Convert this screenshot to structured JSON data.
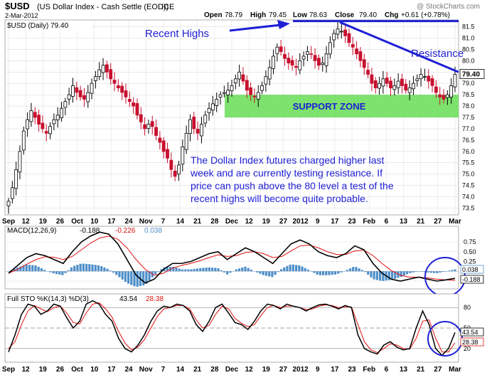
{
  "header": {
    "symbol": "$USD",
    "name": "(US Dollar Index - Cash Settle (EOD))",
    "exchange": "ICE",
    "date": "2-Mar-2012",
    "watermark": "@ StockCharts.com",
    "open_label": "Open",
    "open": "78.79",
    "high_label": "High",
    "high": "79.45",
    "low_label": "Low",
    "low": "78.63",
    "close_label": "Close",
    "close": "79.40",
    "chg_label": "Chg",
    "chg": "+0.61 (+0.78%)"
  },
  "colors": {
    "up": "#000000",
    "down": "#c8102e",
    "annotation": "#1f1fd6",
    "support": "#66dd55",
    "macd_line": "#000000",
    "signal_line": "#e01010",
    "histogram": "#4f8fc9",
    "pk_line": "#000000",
    "pd_line": "#e01010",
    "grid": "#dddddd"
  },
  "chart_data": [
    {
      "type": "candlestick",
      "legend": "$USD (Daily) 79.40",
      "last_value_label": "79.40",
      "ylim": [
        73.2,
        81.8
      ],
      "y_ticks": [
        73.5,
        74.0,
        74.5,
        75.0,
        75.5,
        76.0,
        76.5,
        77.0,
        77.5,
        78.0,
        78.5,
        79.0,
        79.5,
        80.0,
        80.5,
        81.0,
        81.5
      ],
      "x_tick_labels": [
        "Sep",
        "12",
        "19",
        "26",
        "Oct",
        "10",
        "17",
        "24",
        "Nov",
        "7",
        "14",
        "21",
        "28",
        "Dec",
        "12",
        "19",
        "27",
        "2012",
        "9",
        "17",
        "23",
        "Feb",
        "6",
        "13",
        "21",
        "27",
        "Mar"
      ],
      "close_path": [
        73.8,
        74.4,
        75.2,
        76.0,
        76.9,
        77.4,
        77.8,
        77.5,
        77.2,
        77.0,
        76.8,
        77.1,
        77.4,
        77.6,
        77.9,
        78.2,
        78.5,
        78.9,
        78.6,
        78.4,
        78.3,
        78.6,
        79.0,
        79.3,
        79.6,
        79.8,
        79.5,
        79.2,
        79.0,
        78.8,
        78.6,
        78.4,
        78.2,
        78.0,
        77.6,
        77.3,
        77.0,
        77.2,
        77.1,
        76.7,
        76.4,
        76.0,
        75.7,
        75.2,
        74.9,
        75.4,
        76.2,
        76.8,
        77.4,
        77.0,
        76.8,
        77.2,
        77.6,
        77.9,
        78.1,
        78.3,
        78.5,
        78.6,
        78.7,
        78.9,
        79.2,
        79.5,
        79.1,
        78.7,
        78.5,
        78.4,
        78.6,
        78.9,
        79.3,
        79.7,
        80.2,
        80.6,
        80.4,
        80.1,
        79.9,
        79.8,
        79.7,
        80.0,
        80.2,
        80.4,
        80.3,
        80.0,
        79.8,
        79.9,
        80.3,
        80.8,
        81.2,
        81.4,
        81.3,
        81.1,
        80.8,
        80.6,
        80.3,
        80.0,
        79.7,
        79.4,
        79.0,
        78.8,
        79.0,
        79.2,
        79.0,
        78.8,
        78.9,
        79.1,
        78.9,
        78.7,
        78.8,
        79.0,
        79.2,
        79.4,
        79.3,
        79.1,
        78.9,
        78.6,
        78.4,
        78.3,
        78.5,
        78.9,
        79.4
      ],
      "annotations": {
        "recent_highs": "Recent Highs",
        "resistance": "Resistance",
        "support_zone": "SUPPORT ZONE",
        "support_range": [
          77.5,
          78.5
        ],
        "recent_highs_level": 81.75,
        "resistance_line": {
          "from": 81.7,
          "to": 79.5
        },
        "comment_lines": [
          "The Dollar Index futures charged higher last",
          "week and are currently testing resistance. If",
          "price can push above the 80 level a test of the",
          "recent highs will become quite probable."
        ]
      }
    },
    {
      "type": "line",
      "legend_name": "MACD(12,26,9)",
      "legend_values": [
        "-0.188",
        "-0.226",
        "0.038"
      ],
      "ylim": [
        -0.45,
        1.15
      ],
      "y_ticks": [
        0.75,
        0.5,
        0.25,
        0.0,
        -0.25
      ],
      "y_tick_labels": [
        "0.75",
        "0.50",
        "0.25",
        "0.00",
        "-0.25"
      ],
      "value_labels": [
        "0.038",
        "-0.188"
      ],
      "macd_path": [
        -0.05,
        0.15,
        0.35,
        0.45,
        0.4,
        0.3,
        0.2,
        0.5,
        0.75,
        0.9,
        1.0,
        0.95,
        0.7,
        0.3,
        -0.1,
        -0.3,
        -0.2,
        0.05,
        0.2,
        0.2,
        0.25,
        0.35,
        0.45,
        0.5,
        0.3,
        0.45,
        0.6,
        0.5,
        0.35,
        0.2,
        0.45,
        0.7,
        0.8,
        0.7,
        0.5,
        0.4,
        0.35,
        0.45,
        0.65,
        0.55,
        0.2,
        -0.05,
        -0.2,
        -0.25,
        -0.2,
        -0.15,
        -0.2,
        -0.25,
        -0.22,
        -0.18
      ],
      "signal_path": [
        -0.05,
        0.05,
        0.18,
        0.3,
        0.37,
        0.36,
        0.3,
        0.38,
        0.55,
        0.72,
        0.85,
        0.9,
        0.82,
        0.6,
        0.3,
        0.05,
        -0.1,
        -0.05,
        0.08,
        0.15,
        0.2,
        0.27,
        0.35,
        0.42,
        0.38,
        0.4,
        0.48,
        0.5,
        0.45,
        0.35,
        0.38,
        0.52,
        0.65,
        0.67,
        0.6,
        0.5,
        0.43,
        0.43,
        0.52,
        0.54,
        0.4,
        0.2,
        0.02,
        -0.1,
        -0.15,
        -0.15,
        -0.17,
        -0.2,
        -0.22,
        -0.23
      ]
    },
    {
      "type": "line",
      "legend_name": "Full STO %K(14,3) %D(3)",
      "legend_values": [
        "43.54",
        "28.38"
      ],
      "ylim": [
        0,
        100
      ],
      "y_ticks": [
        80,
        50,
        20
      ],
      "y_tick_labels": [
        "80",
        "50",
        "20"
      ],
      "value_labels": [
        "43.54",
        "28.38"
      ],
      "pk_path": [
        15,
        40,
        70,
        85,
        82,
        70,
        75,
        85,
        82,
        65,
        50,
        60,
        85,
        90,
        85,
        70,
        60,
        35,
        20,
        15,
        25,
        40,
        60,
        75,
        82,
        80,
        85,
        83,
        75,
        55,
        45,
        60,
        80,
        85,
        72,
        58,
        55,
        48,
        60,
        75,
        85,
        83,
        78,
        85,
        82,
        80,
        75,
        80,
        84,
        85,
        82,
        78,
        83,
        80,
        40,
        20,
        15,
        12,
        25,
        30,
        22,
        18,
        20,
        50,
        75,
        55,
        20,
        10,
        20,
        43.54
      ],
      "pd_path": [
        20,
        30,
        55,
        75,
        83,
        78,
        74,
        80,
        82,
        72,
        58,
        56,
        72,
        85,
        87,
        78,
        66,
        45,
        28,
        18,
        22,
        33,
        50,
        67,
        78,
        80,
        83,
        83,
        78,
        62,
        50,
        54,
        70,
        82,
        78,
        64,
        57,
        52,
        55,
        68,
        80,
        83,
        80,
        82,
        82,
        80,
        77,
        78,
        82,
        84,
        83,
        80,
        81,
        81,
        55,
        30,
        18,
        14,
        20,
        27,
        25,
        20,
        19,
        35,
        60,
        62,
        35,
        15,
        15,
        28.38
      ]
    }
  ],
  "x_axis": {
    "labels": [
      "Sep",
      "12",
      "19",
      "26",
      "Oct",
      "10",
      "17",
      "24",
      "Nov",
      "7",
      "14",
      "21",
      "28",
      "Dec",
      "12",
      "19",
      "27",
      "2012",
      "9",
      "17",
      "23",
      "Feb",
      "6",
      "13",
      "21",
      "27",
      "Mar"
    ]
  }
}
